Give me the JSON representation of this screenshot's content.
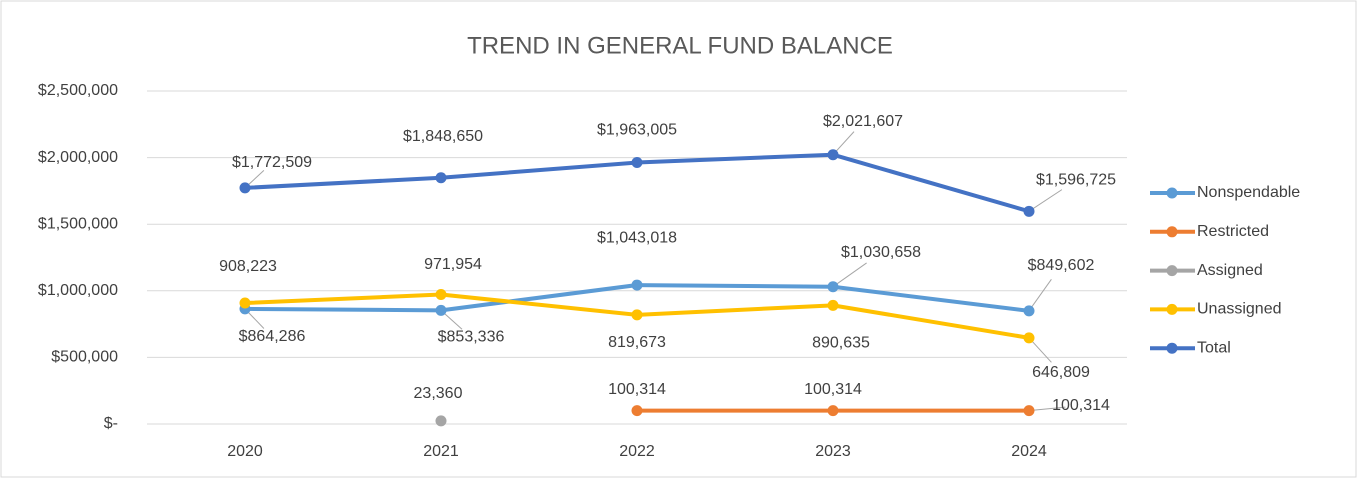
{
  "chart_data": {
    "type": "line",
    "title": "TREND IN GENERAL FUND BALANCE",
    "categories": [
      "2020",
      "2021",
      "2022",
      "2023",
      "2024"
    ],
    "series": [
      {
        "name": "Nonspendable",
        "color": "#5b9bd5",
        "values": [
          864286,
          853336,
          1043018,
          1030658,
          849602
        ],
        "value_labels": [
          "$864,286",
          "$853,336",
          "$1,043,018",
          "$1,030,658",
          "$849,602"
        ]
      },
      {
        "name": "Restricted",
        "color": "#ed7d31",
        "values": [
          null,
          null,
          100314,
          100314,
          100314
        ],
        "value_labels": [
          null,
          null,
          "100,314",
          "100,314",
          "100,314"
        ]
      },
      {
        "name": "Assigned",
        "color": "#a5a5a5",
        "values": [
          null,
          23360,
          null,
          null,
          null
        ],
        "value_labels": [
          null,
          "23,360",
          null,
          null,
          null
        ]
      },
      {
        "name": "Unassigned",
        "color": "#ffc000",
        "values": [
          908223,
          971954,
          819673,
          890635,
          646809
        ],
        "value_labels": [
          "908,223",
          "971,954",
          "819,673",
          "890,635",
          "646,809"
        ]
      },
      {
        "name": "Total",
        "color": "#4472c4",
        "values": [
          1772509,
          1848650,
          1963005,
          2021607,
          1596725
        ],
        "value_labels": [
          "$1,772,509",
          "$1,848,650",
          "$1,963,005",
          "$2,021,607",
          "$1,596,725"
        ]
      }
    ],
    "ylim": [
      0,
      2500000
    ],
    "yticks": [
      {
        "value": 0,
        "label": "$-"
      },
      {
        "value": 500000,
        "label": "$500,000"
      },
      {
        "value": 1000000,
        "label": "$1,000,000"
      },
      {
        "value": 1500000,
        "label": "$1,500,000"
      },
      {
        "value": 2000000,
        "label": "$2,000,000"
      },
      {
        "value": 2500000,
        "label": "$2,500,000"
      }
    ],
    "grid": true,
    "legend": "right"
  }
}
